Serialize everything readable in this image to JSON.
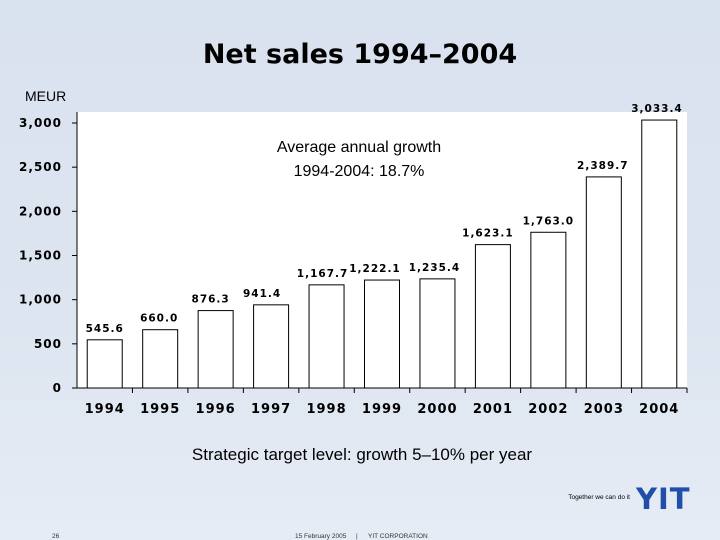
{
  "chart_data": {
    "type": "bar",
    "title": "Net sales 1994–2004",
    "ylabel": "MEUR",
    "xlabel": "",
    "categories": [
      "1994",
      "1995",
      "1996",
      "1997",
      "1998",
      "1999",
      "2000",
      "2001",
      "2002",
      "2003",
      "2004"
    ],
    "values": [
      545.6,
      660.0,
      876.3,
      941.4,
      1167.7,
      1222.1,
      1235.4,
      1623.1,
      1763.0,
      2389.7,
      3033.4
    ],
    "data_labels": [
      "545.6",
      "660.0",
      "876.3",
      "941.4",
      "1,167.7",
      "1,222.1",
      "1,235.4",
      "1,623.1",
      "1,763.0",
      "2,389.7",
      "3,033.4"
    ],
    "ylim": [
      0,
      3000
    ],
    "yticks": [
      0,
      500,
      1000,
      1500,
      2000,
      2500,
      3000
    ],
    "ytick_labels": [
      "0",
      "500",
      "1,000",
      "1,500",
      "2,000",
      "2,500",
      "3,000"
    ],
    "grid": false,
    "bar_color": "#ffffff",
    "annotation_line1": "Average annual growth",
    "annotation_line2": "1994-2004: 18.7%"
  },
  "footer": {
    "strategic_target": "Strategic target level: growth 5–10% per year",
    "tagline": "Together we can do it",
    "logo": "YIT",
    "page_number": "26",
    "date": "15 February 2005",
    "separator": "|",
    "company": "YIT CORPORATION"
  },
  "colors": {
    "logo": "#1f4fa8",
    "text": "#000000"
  }
}
